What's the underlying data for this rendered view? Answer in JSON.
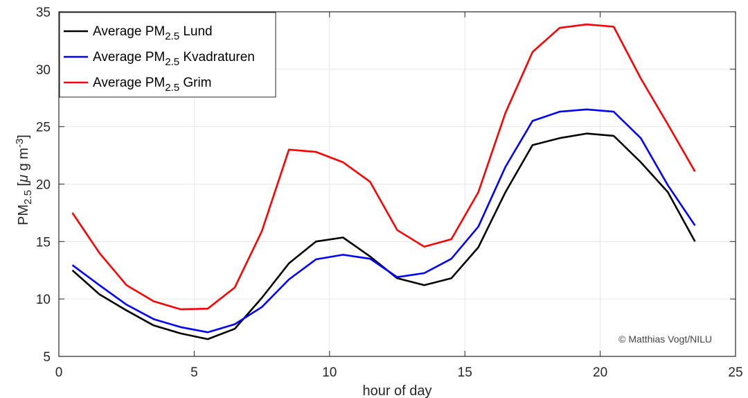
{
  "chart_data": {
    "type": "line",
    "xlabel": "hour of day",
    "ylabel_main": "PM",
    "ylabel_sub": "2.5",
    "ylabel_unit_open": " [",
    "ylabel_mu": "μ",
    "ylabel_unit_mid": " g m",
    "ylabel_sup": "-3",
    "ylabel_unit_close": "]",
    "xlim": [
      0,
      25
    ],
    "ylim": [
      5,
      35
    ],
    "xticks": [
      "0",
      "5",
      "10",
      "15",
      "20",
      "25"
    ],
    "yticks": [
      "5",
      "10",
      "15",
      "20",
      "25",
      "30",
      "35"
    ],
    "grid": true,
    "legend_position": "top-left",
    "x": [
      0.5,
      1.5,
      2.5,
      3.5,
      4.5,
      5.5,
      6.5,
      7.5,
      8.5,
      9.5,
      10.5,
      11.5,
      12.5,
      13.5,
      14.5,
      15.5,
      16.5,
      17.5,
      18.5,
      19.5,
      20.5,
      21.5,
      22.5,
      23.5
    ],
    "series": [
      {
        "legend_prefix": "Average PM",
        "legend_sub": "2.5",
        "legend_suffix": " Lund",
        "color": "#000000",
        "values": [
          12.5,
          10.4,
          9.0,
          7.7,
          7.0,
          6.5,
          7.4,
          10.1,
          13.1,
          15.0,
          15.35,
          13.7,
          11.8,
          11.2,
          11.8,
          14.5,
          19.3,
          23.4,
          24.0,
          24.4,
          24.2,
          21.9,
          19.3,
          15.0
        ]
      },
      {
        "legend_prefix": "Average PM",
        "legend_sub": "2.5",
        "legend_suffix": " Kvadraturen",
        "color": "#0000ff",
        "values": [
          12.95,
          11.2,
          9.5,
          8.25,
          7.55,
          7.1,
          7.8,
          9.3,
          11.7,
          13.45,
          13.85,
          13.5,
          11.9,
          12.25,
          13.5,
          16.3,
          21.5,
          25.5,
          26.3,
          26.5,
          26.3,
          24.0,
          19.9,
          16.4
        ]
      },
      {
        "legend_prefix": "Average PM",
        "legend_sub": "2.5",
        "legend_suffix": " Grim",
        "color": "#ff0000",
        "values": [
          17.5,
          14.0,
          11.2,
          9.8,
          9.1,
          9.15,
          11.0,
          15.9,
          23.0,
          22.8,
          21.9,
          20.2,
          16.0,
          14.55,
          15.2,
          19.3,
          26.2,
          31.5,
          33.6,
          33.9,
          33.7,
          29.2,
          25.2,
          21.1
        ]
      }
    ],
    "credit": "© Matthias Vogt/NILU"
  }
}
